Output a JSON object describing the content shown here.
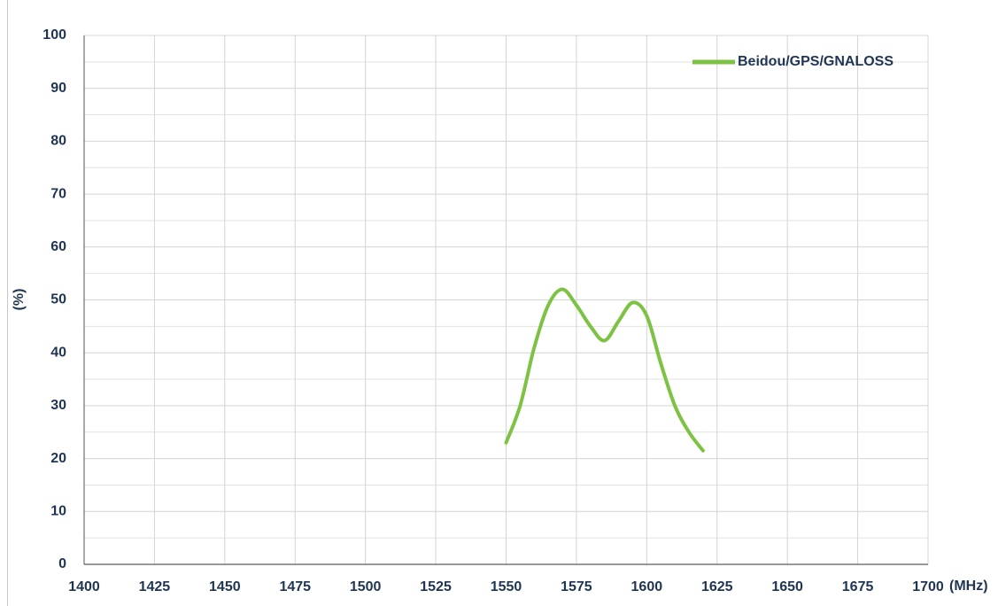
{
  "chart_data": {
    "type": "line",
    "x_label": "(MHz)",
    "y_label": "(%)",
    "x": [
      1550,
      1555,
      1560,
      1565,
      1570,
      1575,
      1580,
      1585,
      1590,
      1595,
      1600,
      1605,
      1610,
      1615,
      1620
    ],
    "series": [
      {
        "name": "Beidou/GPS/GNALOSS",
        "color": "#7dc243",
        "values": [
          23,
          30,
          41,
          49,
          52,
          49,
          45,
          42.3,
          46,
          49.5,
          47,
          38,
          30,
          25,
          21.5
        ]
      }
    ],
    "xlim": [
      1400,
      1700
    ],
    "xticks": [
      1400,
      1425,
      1450,
      1475,
      1500,
      1525,
      1550,
      1575,
      1600,
      1625,
      1650,
      1675,
      1700
    ],
    "ylim": [
      0,
      100
    ],
    "yticks": [
      0,
      10,
      20,
      30,
      40,
      50,
      60,
      70,
      80,
      90,
      100
    ],
    "grid": true,
    "legend": "top-right"
  }
}
